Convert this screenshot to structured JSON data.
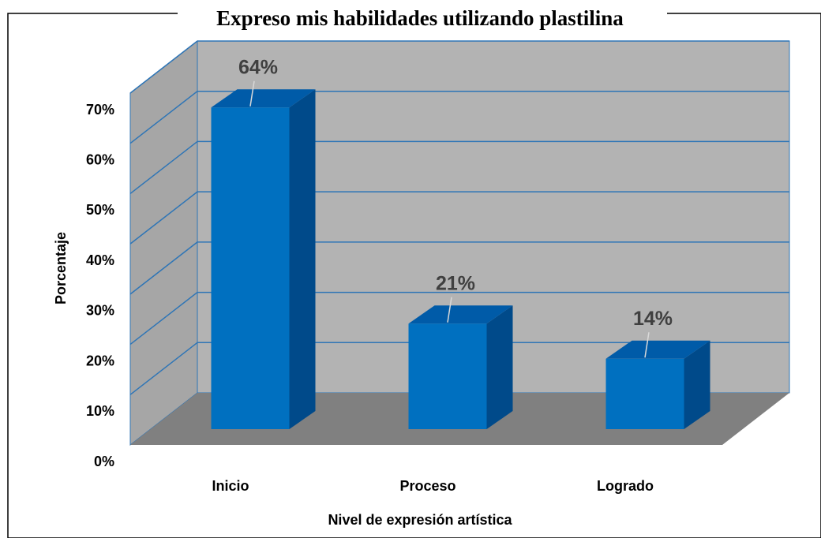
{
  "chart_data": {
    "type": "bar3d",
    "title": "Expreso mis habilidades utilizando plastilina",
    "xlabel": "Nivel de expresión artística",
    "ylabel": "Porcentaje",
    "categories": [
      "Inicio",
      "Proceso",
      "Logrado"
    ],
    "values": [
      64,
      21,
      14
    ],
    "value_labels": [
      "64%",
      "21%",
      "14%"
    ],
    "color": "#0070c0",
    "ylim": [
      0,
      70
    ],
    "yticks": [
      {
        "value": 0,
        "label": "0%"
      },
      {
        "value": 10,
        "label": "10%"
      },
      {
        "value": 20,
        "label": "20%"
      },
      {
        "value": 30,
        "label": "30%"
      },
      {
        "value": 40,
        "label": "40%"
      },
      {
        "value": 50,
        "label": "50%"
      },
      {
        "value": 60,
        "label": "60%"
      },
      {
        "value": 70,
        "label": "70%"
      }
    ],
    "grid": true
  }
}
